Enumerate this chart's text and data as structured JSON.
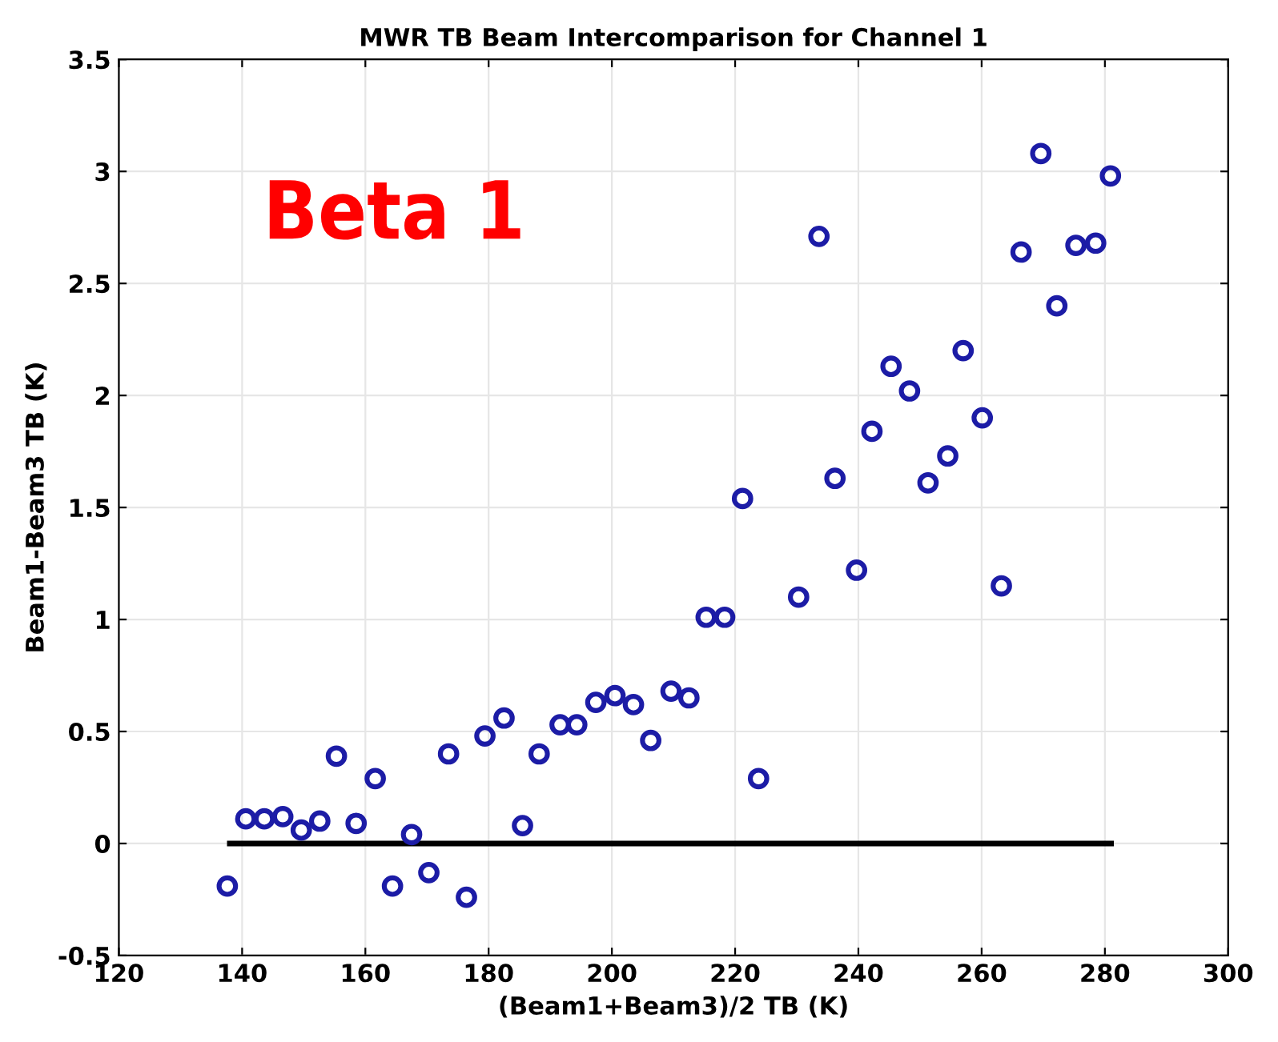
{
  "chart_data": {
    "type": "scatter",
    "title": "MWR TB Beam Intercomparison for Channel 1",
    "xlabel": "(Beam1+Beam3)/2 TB (K)",
    "ylabel": "Beam1-Beam3 TB (K)",
    "annotations": [
      "Beta 1"
    ],
    "xlim": [
      120,
      300
    ],
    "xticks": [
      120,
      140,
      160,
      180,
      200,
      220,
      240,
      260,
      280,
      300
    ],
    "ylim": [
      -0.5,
      3.5
    ],
    "yticks": [
      -0.5,
      0,
      0.5,
      1,
      1.5,
      2,
      2.5,
      3,
      3.5
    ],
    "grid": true,
    "marker": "circle",
    "series": [
      {
        "color": "#1c1ca6",
        "x": [
          137.6,
          140.6,
          143.6,
          146.6,
          149.6,
          152.6,
          155.3,
          158.5,
          161.6,
          164.4,
          167.5,
          170.3,
          173.5,
          176.4,
          179.4,
          182.5,
          185.5,
          188.2,
          191.6,
          194.3,
          197.4,
          200.5,
          203.5,
          206.3,
          209.6,
          212.5,
          215.3,
          218.3,
          221.2,
          223.8,
          230.3,
          233.6,
          236.2,
          239.7,
          242.2,
          245.3,
          248.3,
          251.3,
          254.5,
          257.0,
          260.1,
          263.2,
          266.4,
          269.6,
          272.2,
          275.3,
          278.5,
          280.9
        ],
        "values": [
          -0.19,
          0.11,
          0.11,
          0.12,
          0.06,
          0.1,
          0.39,
          0.09,
          0.29,
          -0.19,
          0.04,
          -0.13,
          0.4,
          -0.24,
          0.48,
          0.56,
          0.08,
          0.4,
          0.53,
          0.53,
          0.63,
          0.66,
          0.62,
          0.46,
          0.68,
          0.65,
          1.01,
          1.01,
          1.54,
          0.29,
          1.1,
          2.71,
          1.63,
          1.22,
          1.84,
          2.13,
          2.02,
          1.61,
          1.73,
          2.2,
          1.9,
          1.15,
          2.64,
          3.08,
          2.4,
          2.67,
          2.68,
          2.98
        ]
      },
      {
        "type": "line",
        "color": "#000000",
        "marker": "none",
        "x": [
          138,
          281
        ],
        "values": [
          0,
          0
        ]
      }
    ]
  }
}
